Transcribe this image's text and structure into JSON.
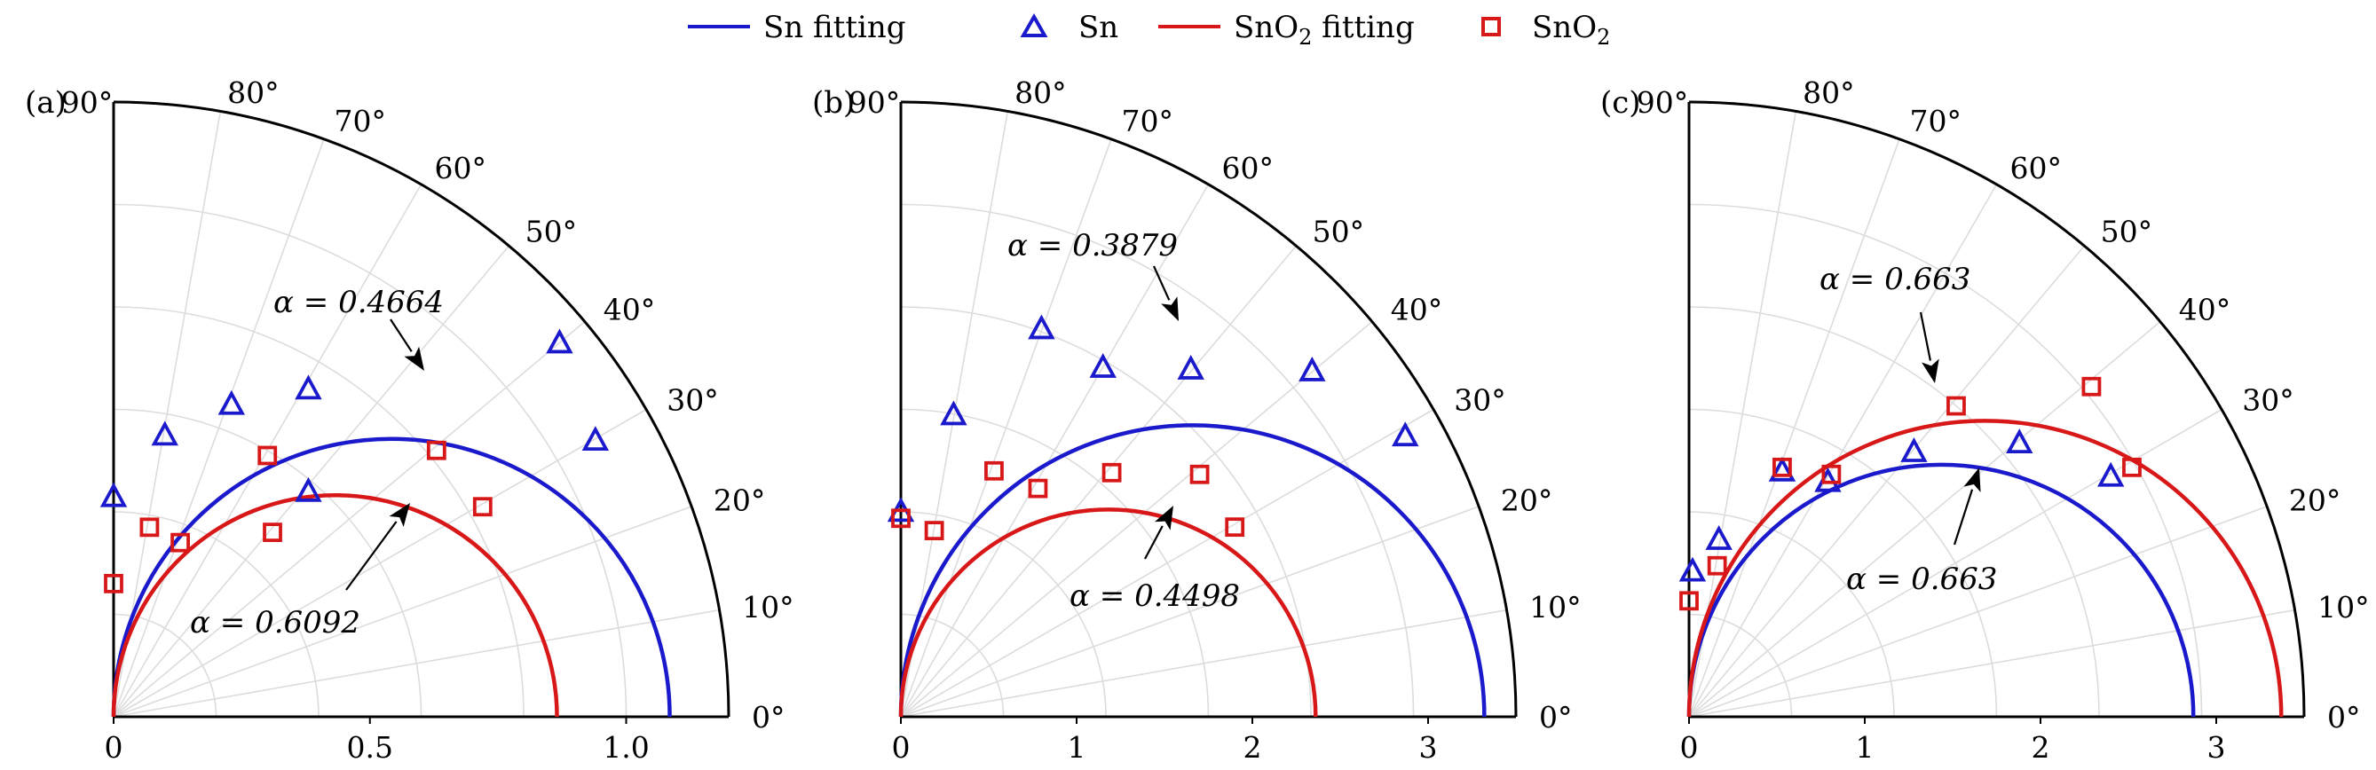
{
  "legend": {
    "items": [
      {
        "label": "Sn fitting",
        "kind": "line",
        "color": "#1a1acc"
      },
      {
        "label": "Sn",
        "kind": "triangle",
        "color": "#1a1acc"
      },
      {
        "label": "SnO₂ fitting",
        "kind": "line",
        "color": "#d81818"
      },
      {
        "label": "SnO₂",
        "kind": "square",
        "color": "#d81818"
      }
    ]
  },
  "colors": {
    "sn": "#1a1acc",
    "sno2": "#d81818",
    "grid": "#dcdcdc",
    "axis": "#000000"
  },
  "chart_data": [
    {
      "type": "scatter",
      "panel_label": "(a)",
      "coordinate_system": "polar-quadrant",
      "rmax": 1.2,
      "r_ticks": [
        "0",
        "0.5",
        "1.0"
      ],
      "r_tick_values": [
        0,
        0.5,
        1.0
      ],
      "angle_ticks": [
        "0°",
        "10°",
        "20°",
        "30°",
        "40°",
        "50°",
        "60°",
        "70°",
        "80°",
        "90°"
      ],
      "fits": [
        {
          "name": "Sn fitting",
          "series": "sn",
          "diameter": 1.085
        },
        {
          "name": "SnO₂ fitting",
          "series": "sno2",
          "diameter": 0.865
        }
      ],
      "series": [
        {
          "name": "Sn",
          "marker": "triangle",
          "x": [
            0.0,
            0.1,
            0.23,
            0.38,
            0.38,
            0.87,
            0.94
          ],
          "y": [
            0.43,
            0.55,
            0.61,
            0.64,
            0.44,
            0.73,
            0.54
          ]
        },
        {
          "name": "SnO₂",
          "marker": "square",
          "x": [
            0.0,
            0.07,
            0.13,
            0.3,
            0.31,
            0.63,
            0.72
          ],
          "y": [
            0.26,
            0.37,
            0.34,
            0.51,
            0.36,
            0.52,
            0.41
          ]
        }
      ],
      "annotations": [
        {
          "text": "α = 0.4664",
          "series": "sn"
        },
        {
          "text": "α = 0.6092",
          "series": "sno2"
        }
      ]
    },
    {
      "type": "scatter",
      "panel_label": "(b)",
      "coordinate_system": "polar-quadrant",
      "rmax": 3.5,
      "r_ticks": [
        "0",
        "1",
        "2",
        "3"
      ],
      "r_tick_values": [
        0,
        1,
        2,
        3
      ],
      "angle_ticks": [
        "0°",
        "10°",
        "20°",
        "30°",
        "40°",
        "50°",
        "60°",
        "70°",
        "80°",
        "90°"
      ],
      "fits": [
        {
          "name": "Sn fitting",
          "series": "sn",
          "diameter": 3.32
        },
        {
          "name": "SnO₂ fitting",
          "series": "sno2",
          "diameter": 2.36
        }
      ],
      "series": [
        {
          "name": "Sn",
          "marker": "triangle",
          "x": [
            0.0,
            0.3,
            0.8,
            1.15,
            1.65,
            2.34,
            2.87
          ],
          "y": [
            1.17,
            1.72,
            2.21,
            1.99,
            1.98,
            1.97,
            1.6
          ]
        },
        {
          "name": "SnO₂",
          "marker": "square",
          "x": [
            0.0,
            0.19,
            0.53,
            0.78,
            1.2,
            1.7,
            1.9
          ],
          "y": [
            1.13,
            1.06,
            1.4,
            1.3,
            1.39,
            1.38,
            1.08
          ]
        }
      ],
      "annotations": [
        {
          "text": "α = 0.3879",
          "series": "sn"
        },
        {
          "text": "α = 0.4498",
          "series": "sno2"
        }
      ]
    },
    {
      "type": "scatter",
      "panel_label": "(c)",
      "coordinate_system": "polar-quadrant",
      "rmax": 3.5,
      "r_ticks": [
        "0",
        "1",
        "2",
        "3"
      ],
      "r_tick_values": [
        0,
        1,
        2,
        3
      ],
      "angle_ticks": [
        "0°",
        "10°",
        "20°",
        "30°",
        "40°",
        "50°",
        "60°",
        "70°",
        "80°",
        "90°"
      ],
      "fits": [
        {
          "name": "Sn fitting",
          "series": "sn",
          "diameter": 2.87
        },
        {
          "name": "SnO₂ fitting",
          "series": "sno2",
          "diameter": 3.37
        }
      ],
      "series": [
        {
          "name": "Sn",
          "marker": "triangle",
          "x": [
            0.02,
            0.17,
            0.53,
            0.79,
            1.28,
            1.88,
            2.4
          ],
          "y": [
            0.83,
            1.01,
            1.4,
            1.34,
            1.51,
            1.56,
            1.37
          ]
        },
        {
          "name": "SnO₂",
          "marker": "square",
          "x": [
            0.0,
            0.16,
            0.53,
            0.81,
            1.52,
            2.29,
            2.52
          ],
          "y": [
            0.66,
            0.86,
            1.42,
            1.38,
            1.77,
            1.88,
            1.42
          ]
        }
      ],
      "annotations": [
        {
          "text": "α = 0.663",
          "series": "sno2"
        },
        {
          "text": "α = 0.663",
          "series": "sn"
        }
      ]
    }
  ]
}
